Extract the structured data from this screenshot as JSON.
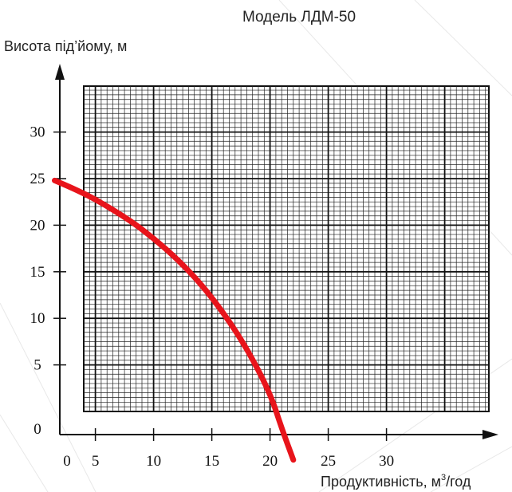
{
  "chart_data": {
    "type": "line",
    "title": "Модель ЛДМ-50",
    "ylabel": "Висота під’йому, м",
    "xlabel": "Продуктивність, м³/год",
    "xlabel_main": "Продуктивність, м",
    "xlabel_sup": "3",
    "xlabel_tail": "/год",
    "x_ticks": [
      "0",
      "5",
      "10",
      "15",
      "20",
      "25",
      "30"
    ],
    "y_ticks": [
      "0",
      "5",
      "10",
      "15",
      "20",
      "25",
      "30"
    ],
    "grid": true,
    "series": [
      {
        "color": "#e8141b",
        "points": [
          [
            1.5,
            24.8
          ],
          [
            3,
            24.0
          ],
          [
            5,
            22.8
          ],
          [
            8,
            20.5
          ],
          [
            10,
            18.6
          ],
          [
            12,
            16.4
          ],
          [
            14,
            13.8
          ],
          [
            16,
            10.6
          ],
          [
            18,
            6.8
          ],
          [
            20,
            2.0
          ],
          [
            21,
            -1.8
          ],
          [
            22,
            -5.2
          ]
        ]
      }
    ]
  }
}
